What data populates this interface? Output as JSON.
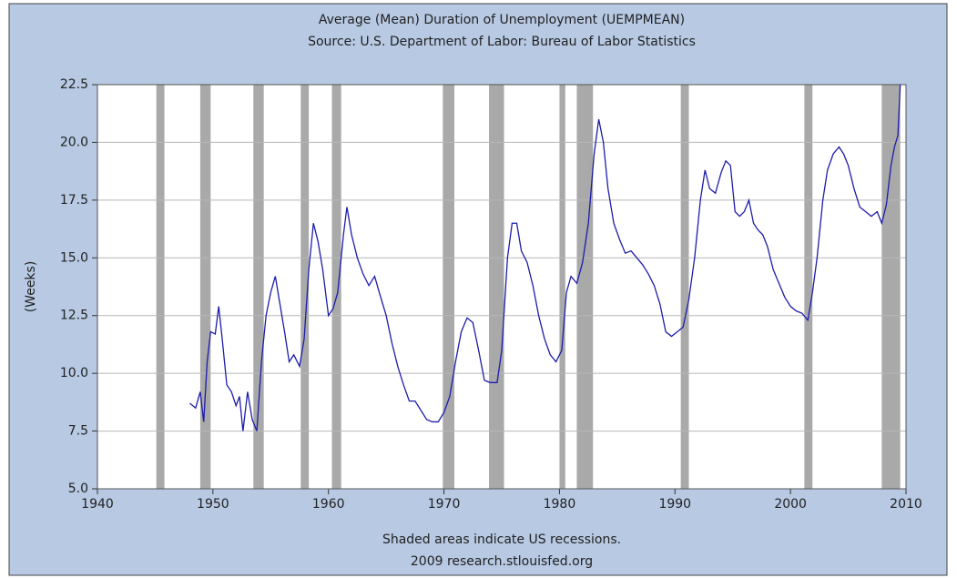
{
  "chart_data": {
    "type": "line",
    "title": "Average (Mean) Duration of Unemployment (UEMPMEAN)",
    "subtitle": "Source: U.S. Department of Labor: Bureau of Labor Statistics",
    "y_label": "(Weeks)",
    "notes": [
      "Shaded areas indicate US recessions.",
      "2009 research.stlouisfed.org"
    ],
    "xlim": [
      1940,
      2010
    ],
    "xticks": [
      1940,
      1950,
      1960,
      1970,
      1980,
      1990,
      2000,
      2010
    ],
    "ylim": [
      5,
      22.5
    ],
    "yticks": [
      {
        "value": 5,
        "label": "5.0"
      },
      7.5,
      {
        "value": 10,
        "label": "10.0"
      },
      12.5,
      {
        "value": 15,
        "label": "15.0"
      },
      17.5,
      {
        "value": 20,
        "label": "20.0"
      },
      22.5
    ],
    "grid": true,
    "recession_color": "#a9a9a9",
    "recessions": [
      [
        1945.1,
        1945.8
      ],
      [
        1948.9,
        1949.8
      ],
      [
        1953.5,
        1954.4
      ],
      [
        1957.6,
        1958.3
      ],
      [
        1960.3,
        1961.1
      ],
      [
        1969.9,
        1970.9
      ],
      [
        1973.9,
        1975.2
      ],
      [
        1980.0,
        1980.5
      ],
      [
        1981.5,
        1982.9
      ],
      [
        1990.5,
        1991.2
      ],
      [
        2001.2,
        2001.9
      ],
      [
        2007.9,
        2009.5
      ]
    ],
    "series": [
      {
        "name": "UEMPMEAN",
        "color": "#1c1caa",
        "x": [
          1948.0,
          1948.5,
          1948.9,
          1949.2,
          1949.5,
          1949.8,
          1950.2,
          1950.5,
          1950.8,
          1951.2,
          1951.6,
          1952.0,
          1952.3,
          1952.6,
          1953.0,
          1953.4,
          1953.8,
          1954.2,
          1954.6,
          1955.0,
          1955.4,
          1955.8,
          1956.2,
          1956.6,
          1957.0,
          1957.5,
          1957.9,
          1958.3,
          1958.7,
          1959.1,
          1959.5,
          1960.0,
          1960.4,
          1960.8,
          1961.3,
          1961.6,
          1962.0,
          1962.5,
          1963.0,
          1963.5,
          1964.0,
          1964.4,
          1965.0,
          1965.5,
          1966.0,
          1966.5,
          1967.0,
          1967.5,
          1968.0,
          1968.5,
          1969.0,
          1969.5,
          1970.0,
          1970.5,
          1971.0,
          1971.5,
          1972.0,
          1972.5,
          1973.0,
          1973.5,
          1974.0,
          1974.6,
          1975.0,
          1975.5,
          1975.9,
          1976.3,
          1976.7,
          1977.2,
          1977.7,
          1978.2,
          1978.7,
          1979.2,
          1979.7,
          1980.2,
          1980.6,
          1981.0,
          1981.5,
          1982.0,
          1982.5,
          1983.0,
          1983.4,
          1983.8,
          1984.2,
          1984.7,
          1985.2,
          1985.7,
          1986.2,
          1986.7,
          1987.2,
          1987.7,
          1988.2,
          1988.7,
          1989.2,
          1989.7,
          1990.2,
          1990.7,
          1991.2,
          1991.7,
          1992.2,
          1992.6,
          1993.0,
          1993.5,
          1994.0,
          1994.4,
          1994.8,
          1995.2,
          1995.6,
          1996.0,
          1996.4,
          1996.8,
          1997.2,
          1997.6,
          1998.0,
          1998.5,
          1999.0,
          1999.5,
          2000.0,
          2000.5,
          2001.0,
          2001.5,
          2001.9,
          2002.3,
          2002.8,
          2003.2,
          2003.7,
          2004.2,
          2004.6,
          2005.0,
          2005.5,
          2006.0,
          2006.5,
          2007.0,
          2007.5,
          2007.9,
          2008.3,
          2008.7,
          2009.0,
          2009.3,
          2009.5
        ],
        "values": [
          8.7,
          8.5,
          9.2,
          7.9,
          10.5,
          11.8,
          11.7,
          12.9,
          11.5,
          9.5,
          9.2,
          8.6,
          9.0,
          7.5,
          9.2,
          8.0,
          7.5,
          10.5,
          12.5,
          13.5,
          14.2,
          13.0,
          11.8,
          10.5,
          10.8,
          10.3,
          11.5,
          14.5,
          16.5,
          15.7,
          14.5,
          12.5,
          12.8,
          13.5,
          16.0,
          17.2,
          16.0,
          15.0,
          14.3,
          13.8,
          14.2,
          13.5,
          12.5,
          11.3,
          10.3,
          9.5,
          8.8,
          8.8,
          8.4,
          8.0,
          7.9,
          7.9,
          8.3,
          9.0,
          10.5,
          11.8,
          12.4,
          12.2,
          11.0,
          9.7,
          9.6,
          9.6,
          11.0,
          15.0,
          16.5,
          16.5,
          15.3,
          14.8,
          13.8,
          12.5,
          11.5,
          10.8,
          10.5,
          11.0,
          13.5,
          14.2,
          13.9,
          14.8,
          16.5,
          19.5,
          21.0,
          20.0,
          18.0,
          16.5,
          15.8,
          15.2,
          15.3,
          15.0,
          14.7,
          14.3,
          13.8,
          13.0,
          11.8,
          11.6,
          11.8,
          12.0,
          13.2,
          15.0,
          17.5,
          18.8,
          18.0,
          17.8,
          18.7,
          19.2,
          19.0,
          17.0,
          16.8,
          17.0,
          17.5,
          16.5,
          16.2,
          16.0,
          15.5,
          14.5,
          13.9,
          13.3,
          12.9,
          12.7,
          12.6,
          12.3,
          13.5,
          15.0,
          17.5,
          18.8,
          19.5,
          19.8,
          19.5,
          19.0,
          18.0,
          17.2,
          17.0,
          16.8,
          17.0,
          16.5,
          17.3,
          19.0,
          19.8,
          20.3,
          22.5
        ]
      }
    ]
  }
}
